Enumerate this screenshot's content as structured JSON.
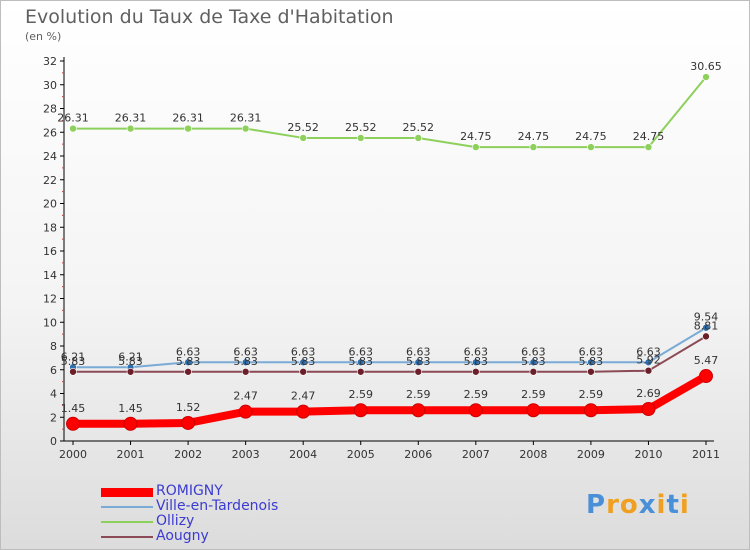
{
  "header": {
    "title": "Evolution du Taux de Taxe d'Habitation",
    "unit": "(en %)"
  },
  "logo": {
    "text": "Proxiti",
    "letter_colors": [
      "#4a90d9",
      "#f0a020",
      "#f0a020",
      "#4a90d9",
      "#f0a020",
      "#4a90d9",
      "#f0a020"
    ]
  },
  "chart_data": {
    "type": "line",
    "x": [
      "2000",
      "2001",
      "2002",
      "2003",
      "2004",
      "2005",
      "2006",
      "2007",
      "2008",
      "2009",
      "2010",
      "2011"
    ],
    "ylim": [
      0,
      32
    ],
    "yticks": [
      0,
      2,
      4,
      6,
      8,
      10,
      12,
      14,
      16,
      18,
      20,
      22,
      24,
      26,
      28,
      30,
      32
    ],
    "grid": false,
    "legend_position": "bottom-left",
    "series": [
      {
        "name": "Ollizy",
        "color": "#8ed05c",
        "values": [
          26.31,
          26.31,
          26.31,
          26.31,
          25.52,
          25.52,
          25.52,
          24.75,
          24.75,
          24.75,
          24.75,
          30.65
        ],
        "labels": [
          "26.31",
          "26.31",
          "26.31",
          "26.31",
          "25.52",
          "25.52",
          "25.52",
          "24.75",
          "24.75",
          "24.75",
          "24.75",
          "30.65"
        ]
      },
      {
        "name": "Ville-en-Tardenois",
        "color": "#7aaad6",
        "marker": "#2e6fb0",
        "values": [
          6.21,
          6.21,
          6.63,
          6.63,
          6.63,
          6.63,
          6.63,
          6.63,
          6.63,
          6.63,
          6.63,
          9.54
        ],
        "labels": [
          "6.21",
          "6.21",
          "6.63",
          "6.63",
          "6.63",
          "6.63",
          "6.63",
          "6.63",
          "6.63",
          "6.63",
          "6.63",
          "9.54"
        ]
      },
      {
        "name": "Aougny",
        "color": "#8b4a55",
        "marker": "#6b1f2a",
        "values": [
          5.83,
          5.83,
          5.83,
          5.83,
          5.83,
          5.83,
          5.83,
          5.83,
          5.83,
          5.83,
          5.92,
          8.81
        ],
        "labels": [
          "5.83",
          "5.83",
          "5.83",
          "5.83",
          "5.83",
          "5.83",
          "5.83",
          "5.83",
          "5.83",
          "5.83",
          "5.92",
          "8.81"
        ]
      },
      {
        "name": "ROMIGNY",
        "color": "#ff0000",
        "values": [
          1.45,
          1.45,
          1.52,
          2.47,
          2.47,
          2.59,
          2.59,
          2.59,
          2.59,
          2.59,
          2.69,
          5.47
        ],
        "labels": [
          "1.45",
          "1.45",
          "1.52",
          "2.47",
          "2.47",
          "2.59",
          "2.59",
          "2.59",
          "2.59",
          "2.59",
          "2.69",
          "5.47"
        ]
      }
    ],
    "legend_order": [
      "ROMIGNY",
      "Ville-en-Tardenois",
      "Ollizy",
      "Aougny"
    ]
  }
}
